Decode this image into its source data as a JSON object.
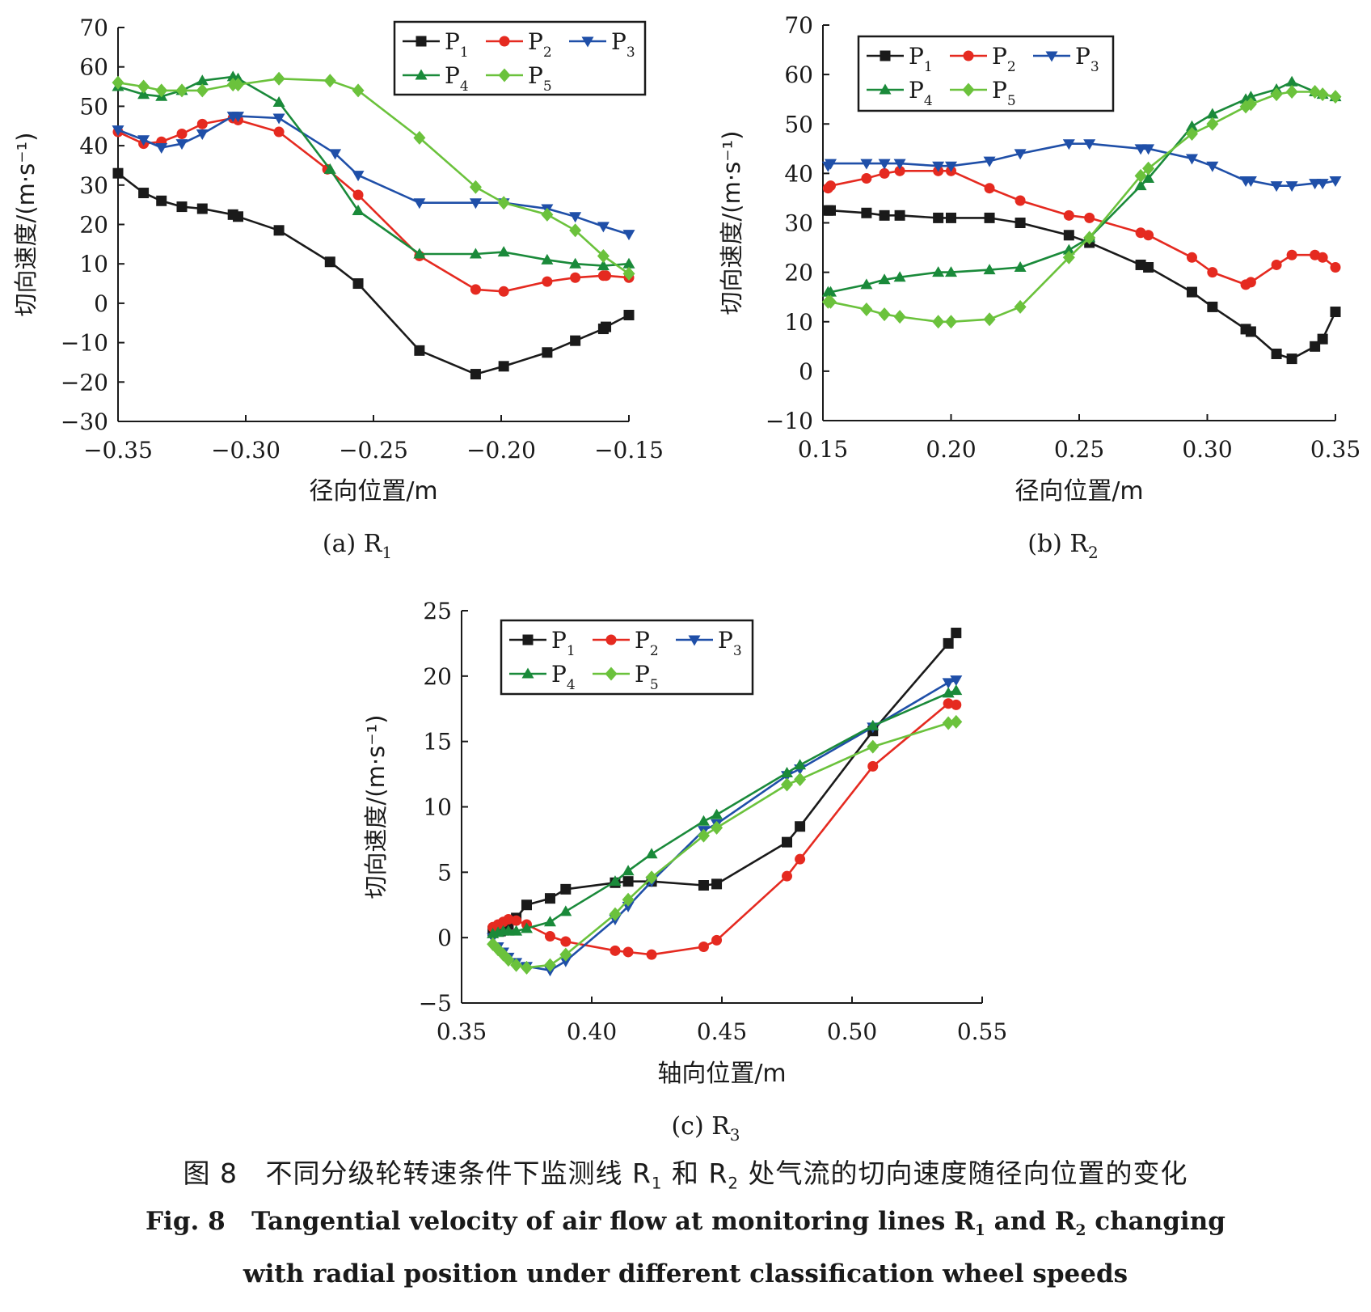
{
  "colors": {
    "P1": "#1a1a1a",
    "P2": "#e52a20",
    "P3": "#1f4fa8",
    "P4": "#1a8a3a",
    "P5": "#6bc23c"
  },
  "markers": {
    "P1": "square",
    "P2": "circle",
    "P3": "triangle-down",
    "P4": "triangle-up",
    "P5": "diamond"
  },
  "caption": {
    "cn_prefix": "图 8",
    "cn_a": "不同分级轮转速条件下监测线 R",
    "cn_b": "和 R",
    "cn_c": "处气流的切向速度随径向位置的变化",
    "sub1": "1",
    "sub2": "2",
    "en1_prefix": "Fig. 8",
    "en1_a": "Tangential velocity of air flow at monitoring lines R",
    "en1_b": "and R",
    "en1_c": "changing",
    "en2": "with radial position under different classification wheel speeds"
  },
  "chart_data": [
    {
      "type": "line",
      "panel_label": "(a) R",
      "panel_sub": "1",
      "xlabel": "径向位置/m",
      "ylabel": "切向速度/(m·s⁻¹)",
      "xlim": [
        -0.35,
        -0.15
      ],
      "ylim": [
        -30,
        70
      ],
      "xticks": [
        -0.35,
        -0.3,
        -0.25,
        -0.2,
        -0.15
      ],
      "xtick_labels": [
        "−0.35",
        "−0.30",
        "−0.25",
        "−0.20",
        "−0.15"
      ],
      "yticks": [
        -30,
        -20,
        -10,
        0,
        10,
        20,
        30,
        40,
        50,
        60,
        70
      ],
      "ytick_labels": [
        "−30",
        "−20",
        "−10",
        "0",
        "10",
        "20",
        "30",
        "40",
        "50",
        "60",
        "70"
      ],
      "legend": "top-right",
      "series": [
        {
          "name": "P1",
          "x": [
            -0.35,
            -0.34,
            -0.333,
            -0.325,
            -0.317,
            -0.305,
            -0.303,
            -0.287,
            -0.267,
            -0.256,
            -0.232,
            -0.21,
            -0.199,
            -0.182,
            -0.171,
            -0.16,
            -0.159,
            -0.15
          ],
          "y": [
            33,
            28,
            26,
            24.5,
            24,
            22.5,
            22,
            18.5,
            10.5,
            5,
            -12,
            -18,
            -16,
            -12.5,
            -9.5,
            -6.5,
            -6,
            -3
          ]
        },
        {
          "name": "P2",
          "x": [
            -0.35,
            -0.34,
            -0.333,
            -0.325,
            -0.317,
            -0.305,
            -0.303,
            -0.287,
            -0.268,
            -0.256,
            -0.232,
            -0.21,
            -0.199,
            -0.182,
            -0.171,
            -0.16,
            -0.159,
            -0.15
          ],
          "y": [
            43.5,
            40.5,
            41,
            43,
            45.5,
            47,
            46.5,
            43.5,
            34,
            27.5,
            12,
            3.5,
            3,
            5.5,
            6.5,
            7,
            7,
            6.5
          ]
        },
        {
          "name": "P3",
          "x": [
            -0.35,
            -0.34,
            -0.333,
            -0.325,
            -0.317,
            -0.305,
            -0.303,
            -0.287,
            -0.265,
            -0.256,
            -0.232,
            -0.21,
            -0.199,
            -0.182,
            -0.171,
            -0.16,
            -0.15
          ],
          "y": [
            44,
            41.5,
            39.5,
            40.5,
            43,
            47.5,
            47.5,
            47,
            38,
            32.5,
            25.5,
            25.5,
            25.5,
            24,
            22,
            19.5,
            17.5
          ]
        },
        {
          "name": "P4",
          "x": [
            -0.35,
            -0.34,
            -0.333,
            -0.325,
            -0.317,
            -0.305,
            -0.303,
            -0.287,
            -0.267,
            -0.256,
            -0.232,
            -0.21,
            -0.199,
            -0.182,
            -0.171,
            -0.16,
            -0.15
          ],
          "y": [
            55,
            53,
            52.5,
            54,
            56.5,
            57.5,
            57,
            51,
            34,
            23.5,
            12.5,
            12.5,
            13,
            11,
            10,
            9.5,
            10
          ]
        },
        {
          "name": "P5",
          "x": [
            -0.35,
            -0.34,
            -0.333,
            -0.325,
            -0.317,
            -0.305,
            -0.303,
            -0.287,
            -0.267,
            -0.256,
            -0.232,
            -0.21,
            -0.199,
            -0.182,
            -0.171,
            -0.16,
            -0.15
          ],
          "y": [
            56,
            55,
            54,
            54,
            54,
            55.5,
            55.5,
            57,
            56.5,
            54,
            42,
            29.5,
            25.5,
            22.5,
            18.5,
            12,
            7.5
          ]
        }
      ]
    },
    {
      "type": "line",
      "panel_label": "(b) R",
      "panel_sub": "2",
      "xlabel": "径向位置/m",
      "ylabel": "切向速度/(m·s⁻¹)",
      "xlim": [
        0.15,
        0.35
      ],
      "ylim": [
        -10,
        70
      ],
      "xticks": [
        0.15,
        0.2,
        0.25,
        0.3,
        0.35
      ],
      "xtick_labels": [
        "0.15",
        "0.20",
        "0.25",
        "0.30",
        "0.35"
      ],
      "yticks": [
        -10,
        0,
        10,
        20,
        30,
        40,
        50,
        60,
        70
      ],
      "ytick_labels": [
        "−10",
        "0",
        "10",
        "20",
        "30",
        "40",
        "50",
        "60",
        "70"
      ],
      "legend": "top-left",
      "series": [
        {
          "name": "P1",
          "x": [
            0.152,
            0.153,
            0.167,
            0.174,
            0.18,
            0.195,
            0.2,
            0.215,
            0.227,
            0.246,
            0.254,
            0.274,
            0.277,
            0.294,
            0.302,
            0.315,
            0.317,
            0.327,
            0.333,
            0.342,
            0.345,
            0.35
          ],
          "y": [
            32.5,
            32.5,
            32,
            31.5,
            31.5,
            31,
            31,
            31,
            30,
            27.5,
            26,
            21.5,
            21,
            16,
            13,
            8.5,
            8,
            3.5,
            2.5,
            5,
            6.5,
            12
          ]
        },
        {
          "name": "P2",
          "x": [
            0.152,
            0.153,
            0.167,
            0.174,
            0.18,
            0.195,
            0.2,
            0.215,
            0.227,
            0.246,
            0.254,
            0.274,
            0.277,
            0.294,
            0.302,
            0.315,
            0.317,
            0.327,
            0.333,
            0.342,
            0.345,
            0.35
          ],
          "y": [
            37,
            37.5,
            39,
            40,
            40.5,
            40.5,
            40.5,
            37,
            34.5,
            31.5,
            31,
            28,
            27.5,
            23,
            20,
            17.5,
            18,
            21.5,
            23.5,
            23.5,
            23,
            21
          ]
        },
        {
          "name": "P3",
          "x": [
            0.152,
            0.153,
            0.167,
            0.174,
            0.18,
            0.195,
            0.2,
            0.215,
            0.227,
            0.246,
            0.254,
            0.274,
            0.277,
            0.294,
            0.302,
            0.315,
            0.317,
            0.327,
            0.333,
            0.342,
            0.345,
            0.35
          ],
          "y": [
            41.5,
            42,
            42,
            42,
            42,
            41.5,
            41.5,
            42.5,
            44,
            46,
            46,
            45,
            45,
            43,
            41.5,
            38.5,
            38.5,
            37.5,
            37.5,
            38,
            38,
            38.5
          ]
        },
        {
          "name": "P4",
          "x": [
            0.152,
            0.153,
            0.167,
            0.174,
            0.18,
            0.195,
            0.2,
            0.215,
            0.227,
            0.246,
            0.254,
            0.274,
            0.277,
            0.294,
            0.302,
            0.315,
            0.317,
            0.327,
            0.333,
            0.342,
            0.345,
            0.35
          ],
          "y": [
            16,
            16,
            17.5,
            18.5,
            19,
            20,
            20,
            20.5,
            21,
            24.5,
            27,
            37.5,
            39,
            49.5,
            52,
            55,
            55.5,
            57,
            58.5,
            56.5,
            56,
            55.5
          ]
        },
        {
          "name": "P5",
          "x": [
            0.152,
            0.153,
            0.167,
            0.174,
            0.18,
            0.195,
            0.2,
            0.215,
            0.227,
            0.246,
            0.254,
            0.274,
            0.277,
            0.294,
            0.302,
            0.315,
            0.317,
            0.327,
            0.333,
            0.342,
            0.345,
            0.35
          ],
          "y": [
            14,
            14,
            12.5,
            11.5,
            11,
            10,
            10,
            10.5,
            13,
            23,
            27,
            39.5,
            41,
            48,
            50,
            53.5,
            54,
            56,
            56.5,
            56.5,
            56,
            55.5
          ]
        }
      ]
    },
    {
      "type": "line",
      "panel_label": "(c) R",
      "panel_sub": "3",
      "xlabel": "轴向位置/m",
      "ylabel": "切向速度/(m·s⁻¹)",
      "xlim": [
        0.35,
        0.55
      ],
      "ylim": [
        -5,
        25
      ],
      "xticks": [
        0.35,
        0.4,
        0.45,
        0.5,
        0.55
      ],
      "xtick_labels": [
        "0.35",
        "0.40",
        "0.45",
        "0.50",
        "0.55"
      ],
      "yticks": [
        -5,
        0,
        5,
        10,
        15,
        20,
        25
      ],
      "ytick_labels": [
        "−5",
        "0",
        "5",
        "10",
        "15",
        "20",
        "25"
      ],
      "legend": "top-left",
      "series": [
        {
          "name": "P1",
          "x": [
            0.362,
            0.365,
            0.368,
            0.371,
            0.375,
            0.384,
            0.39,
            0.409,
            0.414,
            0.423,
            0.443,
            0.448,
            0.475,
            0.48,
            0.508,
            0.537,
            0.54
          ],
          "y": [
            0.5,
            0.5,
            1,
            1.5,
            2.5,
            3,
            3.7,
            4.2,
            4.3,
            4.3,
            4,
            4.1,
            7.3,
            8.5,
            15.8,
            22.5,
            23.3
          ]
        },
        {
          "name": "P2",
          "x": [
            0.362,
            0.364,
            0.366,
            0.368,
            0.371,
            0.375,
            0.384,
            0.39,
            0.409,
            0.414,
            0.423,
            0.443,
            0.448,
            0.475,
            0.48,
            0.508,
            0.537,
            0.54
          ],
          "y": [
            0.8,
            1.0,
            1.2,
            1.4,
            1.3,
            1.0,
            0.1,
            -0.3,
            -1.0,
            -1.1,
            -1.3,
            -0.7,
            -0.2,
            4.7,
            6.0,
            13.1,
            17.9,
            17.8
          ]
        },
        {
          "name": "P3",
          "x": [
            0.362,
            0.364,
            0.366,
            0.368,
            0.371,
            0.375,
            0.384,
            0.39,
            0.409,
            0.414,
            0.423,
            0.443,
            0.448,
            0.475,
            0.48,
            0.508,
            0.537,
            0.54
          ],
          "y": [
            0.0,
            -0.7,
            -1.1,
            -1.5,
            -1.9,
            -2.2,
            -2.5,
            -1.8,
            1.4,
            2.4,
            4.3,
            8.2,
            8.7,
            12.4,
            12.9,
            16.1,
            19.5,
            19.7
          ]
        },
        {
          "name": "P4",
          "x": [
            0.362,
            0.364,
            0.366,
            0.368,
            0.371,
            0.375,
            0.384,
            0.39,
            0.409,
            0.414,
            0.423,
            0.443,
            0.448,
            0.475,
            0.48,
            0.508,
            0.537,
            0.54
          ],
          "y": [
            0.3,
            0.4,
            0.5,
            0.5,
            0.5,
            0.7,
            1.2,
            2.0,
            4.3,
            5.1,
            6.4,
            8.9,
            9.4,
            12.6,
            13.2,
            16.2,
            18.7,
            18.9
          ]
        },
        {
          "name": "P5",
          "x": [
            0.362,
            0.364,
            0.366,
            0.368,
            0.371,
            0.375,
            0.384,
            0.39,
            0.409,
            0.414,
            0.423,
            0.443,
            0.448,
            0.475,
            0.48,
            0.508,
            0.537,
            0.54
          ],
          "y": [
            -0.5,
            -0.9,
            -1.3,
            -1.7,
            -2.1,
            -2.3,
            -2.1,
            -1.3,
            1.8,
            2.9,
            4.6,
            7.8,
            8.4,
            11.7,
            12.1,
            14.6,
            16.4,
            16.5
          ]
        }
      ]
    }
  ]
}
